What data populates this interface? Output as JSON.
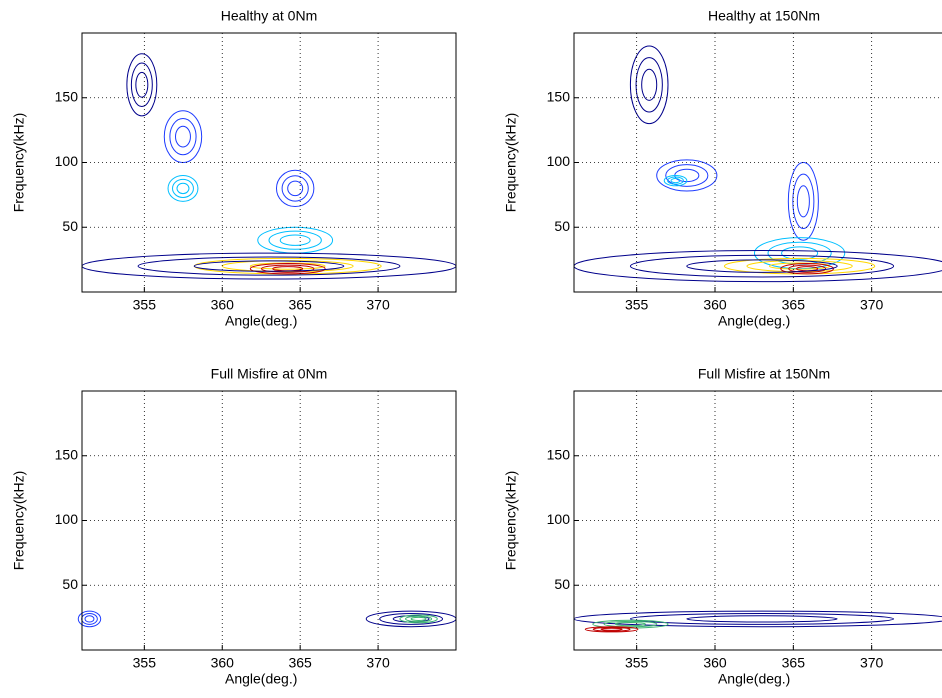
{
  "chart_data": [
    {
      "type": "contour",
      "title": "Healthy at 0Nm",
      "xlabel": "Angle(deg.)",
      "ylabel": "Frequency(kHz)",
      "xlim": [
        351,
        375
      ],
      "ylim": [
        0,
        200
      ],
      "xticks": [
        355,
        360,
        365,
        370
      ],
      "yticks": [
        50,
        100,
        150
      ],
      "grid": true
    },
    {
      "type": "contour",
      "title": "Healthy at 150Nm",
      "xlabel": "Angle(deg.)",
      "ylabel": "Frequency(kHz)",
      "xlim": [
        351,
        375
      ],
      "ylim": [
        0,
        200
      ],
      "xticks": [
        355,
        360,
        365,
        370
      ],
      "yticks": [
        50,
        100,
        150
      ],
      "grid": true
    },
    {
      "type": "contour",
      "title": "Full Misfire at 0Nm",
      "xlabel": "Angle(deg.)",
      "ylabel": "Frequency(kHz)",
      "xlim": [
        351,
        375
      ],
      "ylim": [
        0,
        200
      ],
      "xticks": [
        355,
        360,
        365,
        370
      ],
      "yticks": [
        50,
        100,
        150
      ],
      "grid": true
    },
    {
      "type": "contour",
      "title": "Full Misfire at 150Nm",
      "xlabel": "Angle(deg.)",
      "ylabel": "Frequency(kHz)",
      "xlim": [
        351,
        375
      ],
      "ylim": [
        0,
        200
      ],
      "xticks": [
        355,
        360,
        365,
        370
      ],
      "yticks": [
        50,
        100,
        150
      ],
      "grid": true
    }
  ]
}
